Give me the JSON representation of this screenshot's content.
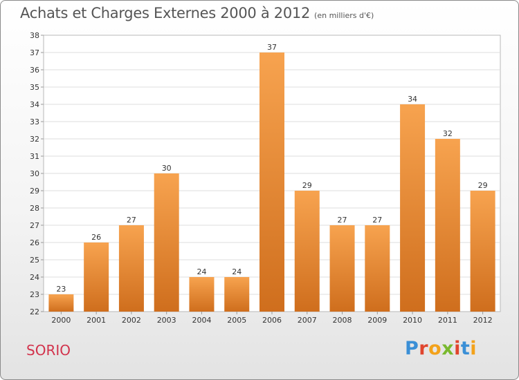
{
  "chart_data": {
    "type": "bar",
    "title": "Achats et Charges Externes 2000 à 2012",
    "subtitle": "(en milliers d'€)",
    "categories": [
      "2000",
      "2001",
      "2002",
      "2003",
      "2004",
      "2005",
      "2006",
      "2007",
      "2008",
      "2009",
      "2010",
      "2011",
      "2012"
    ],
    "values": [
      23,
      26,
      27,
      30,
      24,
      24,
      37,
      29,
      27,
      27,
      34,
      32,
      29
    ],
    "ylim": [
      22,
      38
    ],
    "yticks": [
      22,
      23,
      24,
      25,
      26,
      27,
      28,
      29,
      30,
      31,
      32,
      33,
      34,
      35,
      36,
      37,
      38
    ],
    "grid": true,
    "bar_color": "#f0923a"
  },
  "footer": {
    "commune": "SORIO",
    "logo": [
      "P",
      "r",
      "o",
      "x",
      "i",
      "t",
      "i"
    ],
    "logo_colors": [
      "#3a8fd6",
      "#e0452e",
      "#f3a21b",
      "#79b92e",
      "#e0452e",
      "#3a8fd6",
      "#f3a21b"
    ]
  }
}
